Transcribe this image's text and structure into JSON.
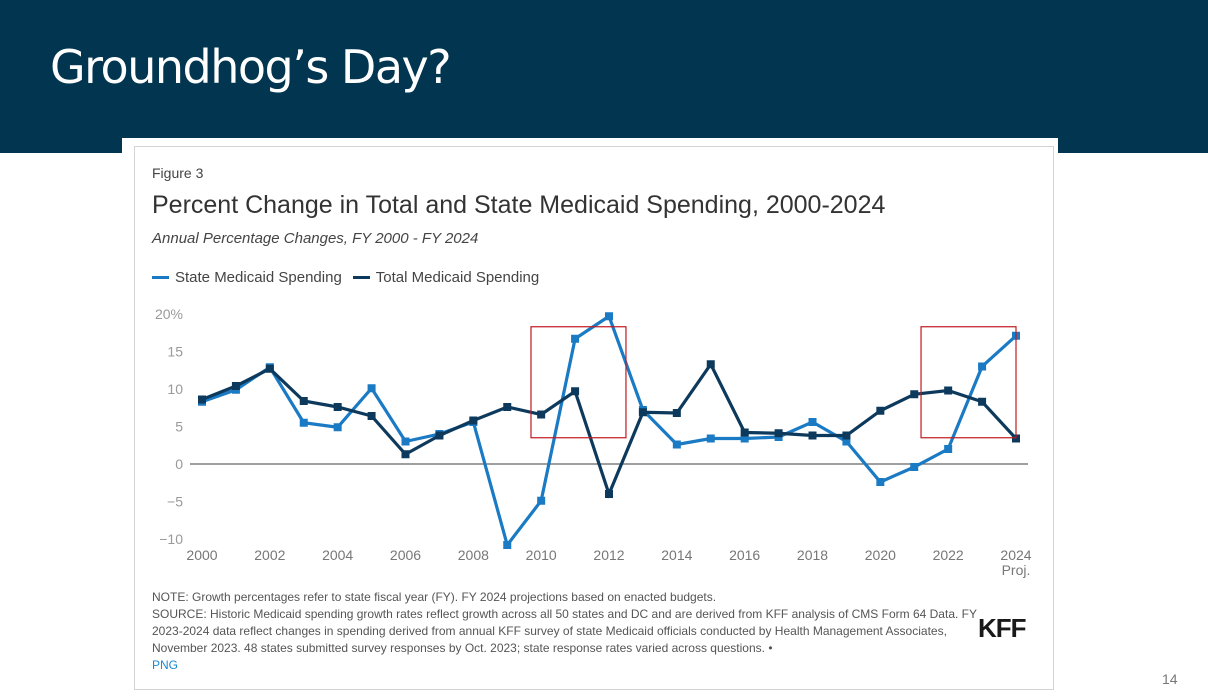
{
  "slide": {
    "title": "Groundhog’s Day?",
    "page_number": "14",
    "banner_color": "#02354f"
  },
  "figure": {
    "label": "Figure 3",
    "note": "NOTE: Growth percentages refer to state fiscal year (FY). FY 2024 projections based on enacted budgets.",
    "source": "SOURCE: Historic Medicaid spending growth rates reflect growth across all 50 states and DC and are derived from KFF analysis of CMS Form 64 Data. FY 2023-2024 data reflect changes in spending derived from annual KFF survey of state Medicaid officials conducted by Health Management Associates, November 2023. 48 states submitted survey responses by Oct. 2023; state response rates varied across questions. •",
    "png_link": "PNG",
    "logo": "KFF"
  },
  "chart_data": {
    "type": "line",
    "title": "Percent Change in Total and State Medicaid Spending, 2000-2024",
    "subtitle": "Annual Percentage Changes, FY 2000 - FY 2024",
    "xlabel": "",
    "ylabel": "",
    "x": [
      2000,
      2001,
      2002,
      2003,
      2004,
      2005,
      2006,
      2007,
      2008,
      2009,
      2010,
      2011,
      2012,
      2013,
      2014,
      2015,
      2016,
      2017,
      2018,
      2019,
      2020,
      2021,
      2022,
      2023,
      2024
    ],
    "x_ticks": [
      2000,
      2002,
      2004,
      2006,
      2008,
      2010,
      2012,
      2014,
      2016,
      2018,
      2020,
      2022,
      2024
    ],
    "x_tick_labels": [
      "2000",
      "2002",
      "2004",
      "2006",
      "2008",
      "2010",
      "2012",
      "2014",
      "2016",
      "2018",
      "2020",
      "2022",
      "2024"
    ],
    "x_tick_sublabel": {
      "2024": "Proj."
    },
    "y_ticks": [
      -10,
      -5,
      0,
      5,
      10,
      15,
      20
    ],
    "y_tick_labels": [
      "−10",
      "−5",
      "0",
      "5",
      "10",
      "15",
      "20%"
    ],
    "ylim": [
      -10,
      20
    ],
    "xlim": [
      2000,
      2024
    ],
    "grid": false,
    "zero_line": true,
    "legend_position": "top-left",
    "series": [
      {
        "name": "State Medicaid Spending",
        "color": "#1a7ac4",
        "values": [
          8.3,
          9.9,
          12.9,
          5.5,
          4.9,
          10.1,
          3.0,
          4.0,
          5.6,
          -10.8,
          -4.9,
          16.7,
          19.7,
          7.2,
          2.6,
          3.4,
          3.4,
          3.6,
          5.6,
          3.0,
          -2.4,
          -0.4,
          2.0,
          13.0,
          17.1
        ]
      },
      {
        "name": "Total Medicaid Spending",
        "color": "#0d3a5c",
        "values": [
          8.6,
          10.4,
          12.7,
          8.4,
          7.6,
          6.4,
          1.3,
          3.8,
          5.8,
          7.6,
          6.6,
          9.7,
          -4.0,
          6.9,
          6.8,
          13.3,
          4.2,
          4.1,
          3.8,
          3.8,
          7.1,
          9.3,
          9.8,
          8.3,
          3.4
        ]
      }
    ],
    "annotations": [
      {
        "type": "highlight-box",
        "x_range": [
          2009.7,
          2012.5
        ],
        "y_range": [
          3.5,
          18.3
        ],
        "color": "#c0191f"
      },
      {
        "type": "highlight-box",
        "x_range": [
          2021.2,
          2024.0
        ],
        "y_range": [
          3.5,
          18.3
        ],
        "color": "#c0191f"
      }
    ]
  }
}
